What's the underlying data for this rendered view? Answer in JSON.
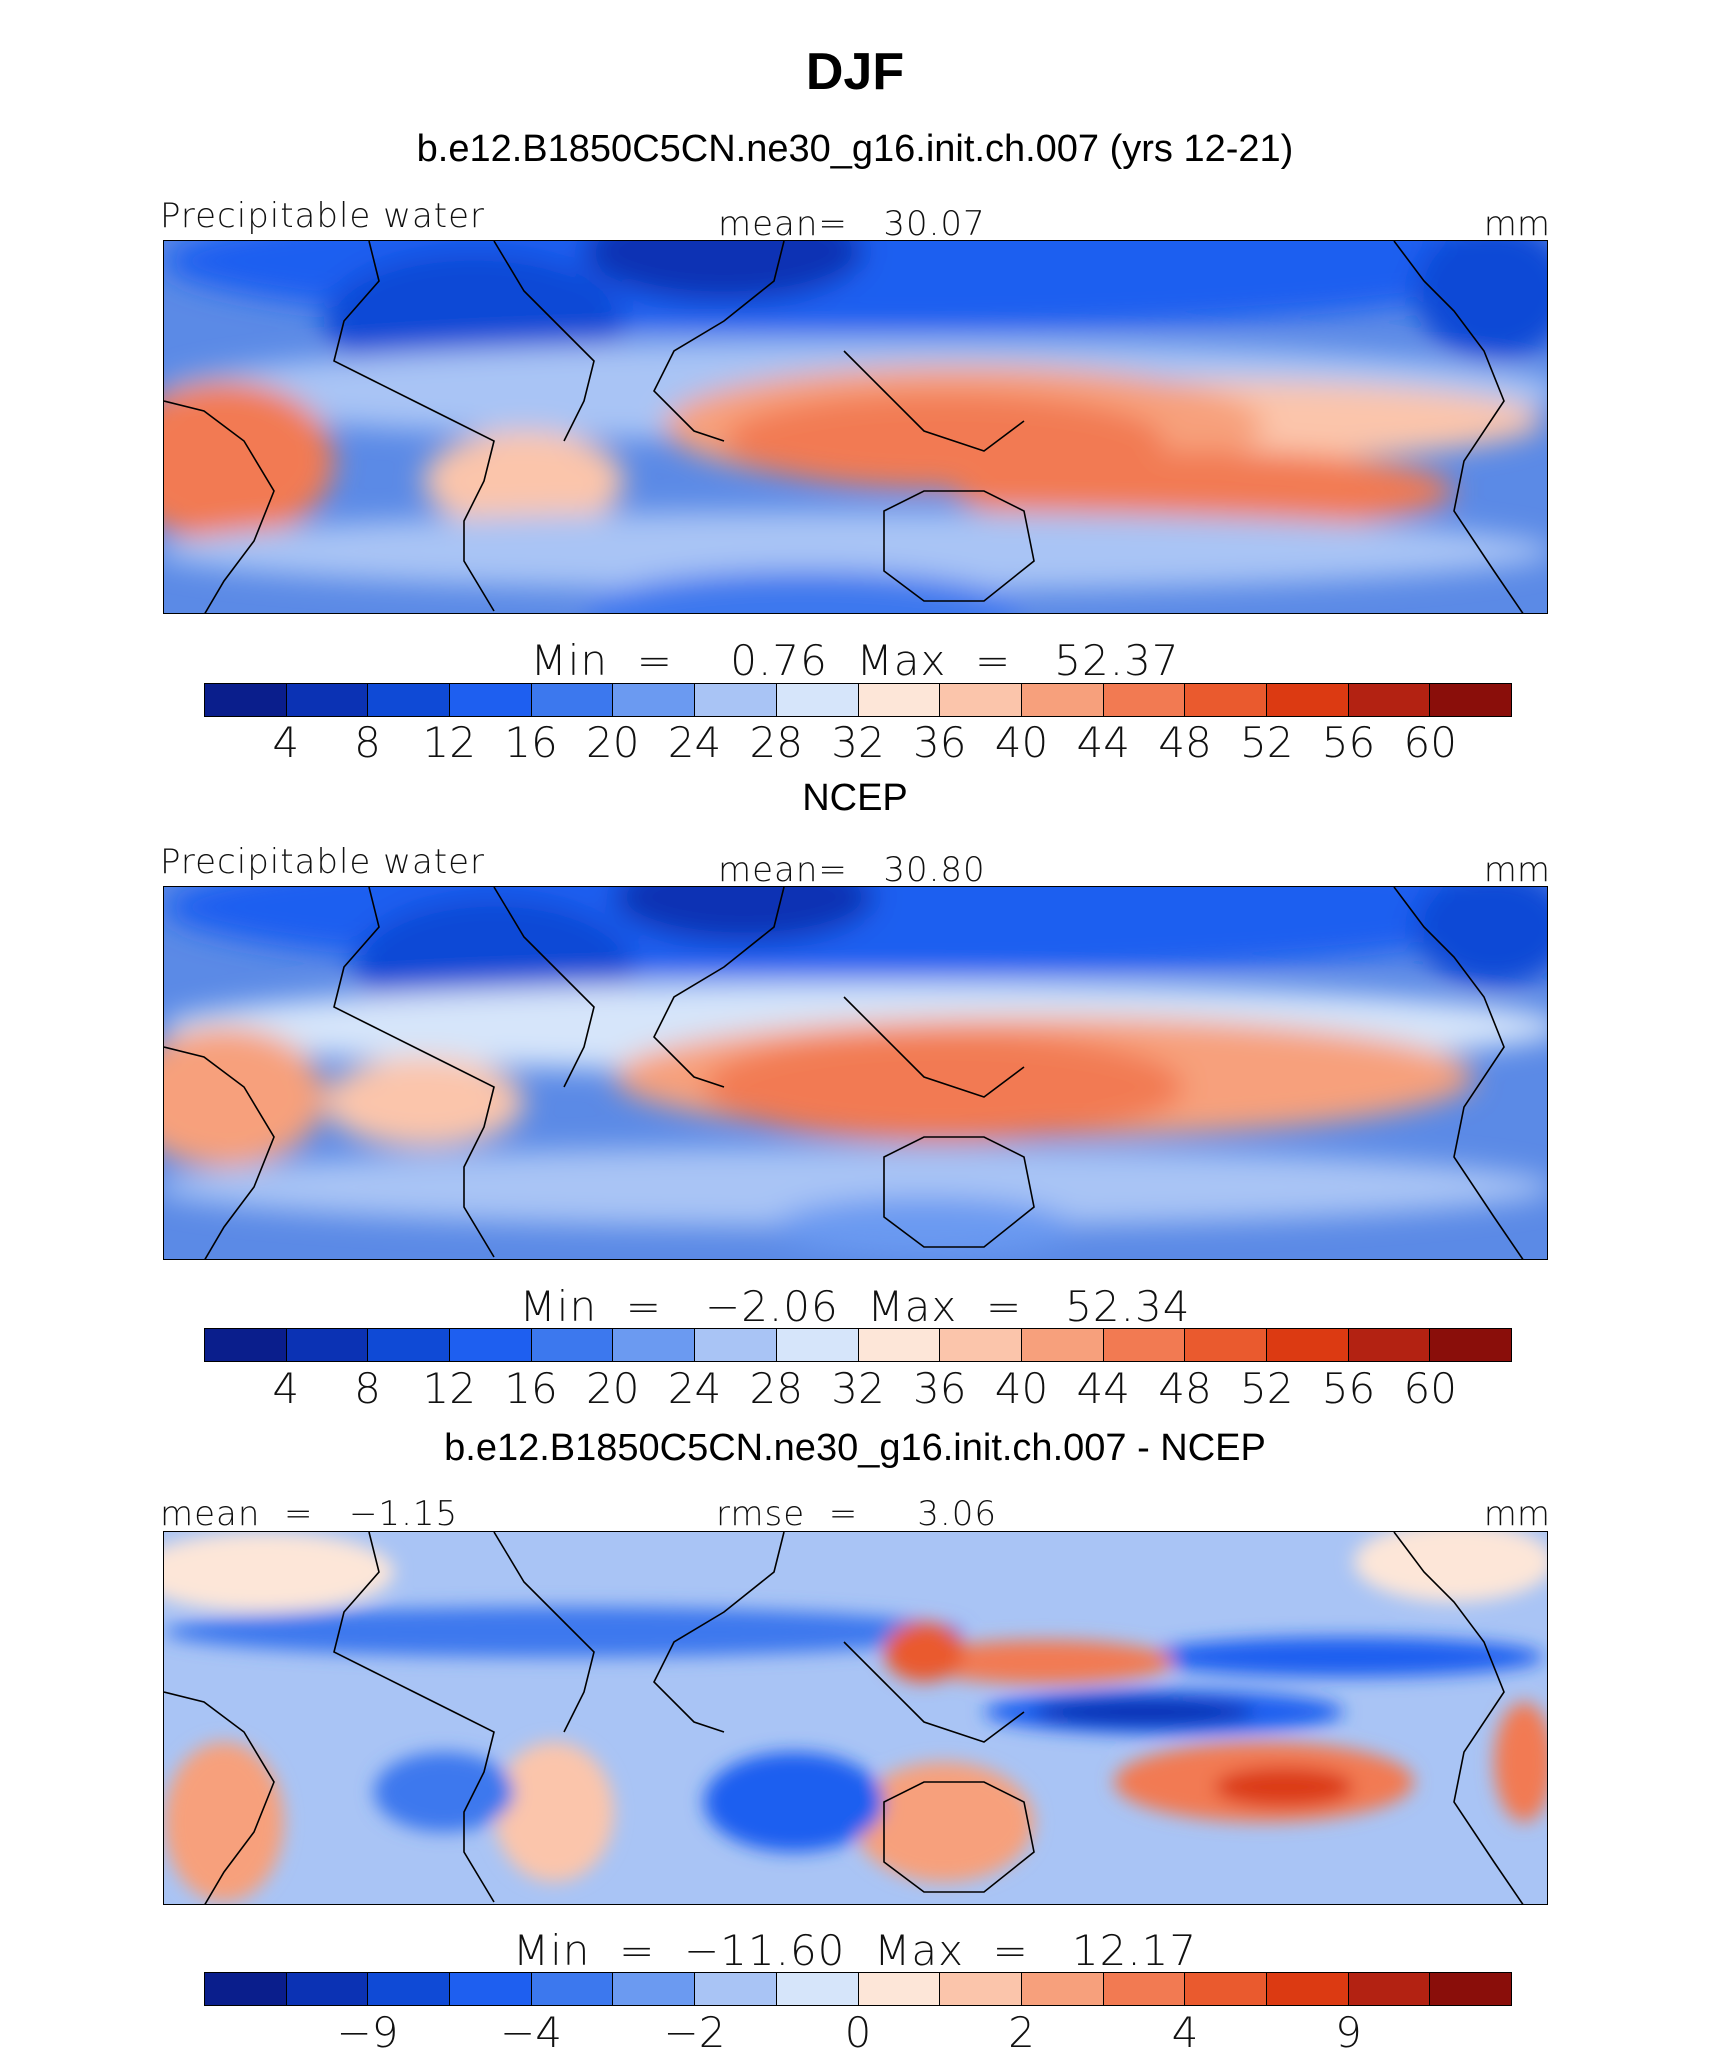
{
  "figure": {
    "season": "DJF"
  },
  "panels": [
    {
      "title": "b.e12.B1850C5CN.ne30_g16.init.ch.007 (yrs 12-21)",
      "left_label": "Precipitable water",
      "center_label": "mean=   30.07",
      "right_label": "mm",
      "minmax": "Min  =    0.76  Max  =   52.37",
      "colorbar_ticks": [
        "4",
        "8",
        "12",
        "16",
        "20",
        "24",
        "28",
        "32",
        "36",
        "40",
        "44",
        "48",
        "52",
        "56",
        "60"
      ]
    },
    {
      "title": "NCEP",
      "left_label": "Precipitable water",
      "center_label": "mean=   30.80",
      "right_label": "mm",
      "minmax": "Min  =   −2.06  Max  =   52.34",
      "colorbar_ticks": [
        "4",
        "8",
        "12",
        "16",
        "20",
        "24",
        "28",
        "32",
        "36",
        "40",
        "44",
        "48",
        "52",
        "56",
        "60"
      ]
    },
    {
      "title": "b.e12.B1850C5CN.ne30_g16.init.ch.007 - NCEP",
      "left_label": "mean  =   −1.15",
      "center_label": "rmse  =     3.06",
      "right_label": "mm",
      "minmax": "Min  =  −11.60  Max  =   12.17",
      "colorbar_ticks": [
        "−9",
        "−4",
        "−2",
        "0",
        "2",
        "4",
        "9"
      ]
    }
  ],
  "chart_data": [
    {
      "type": "heatmap",
      "title": "b.e12.B1850C5CN.ne30_g16.init.ch.007 (yrs 12-21)",
      "variable": "Precipitable water",
      "units": "mm",
      "mean": 30.07,
      "min": 0.76,
      "max": 52.37,
      "contour_levels": [
        4,
        8,
        12,
        16,
        20,
        24,
        28,
        32,
        36,
        40,
        44,
        48,
        52,
        56,
        60
      ],
      "colors": [
        "#0a1e8c",
        "#0b32b4",
        "#0f4ad6",
        "#1e5ff0",
        "#3c78ee",
        "#6b9af1",
        "#a9c4f5",
        "#d6e5fa",
        "#fde6d8",
        "#fbc5ab",
        "#f7a07c",
        "#f27a52",
        "#ea5a2e",
        "#dc3a12",
        "#b32212",
        "#8a0e0a"
      ]
    },
    {
      "type": "heatmap",
      "title": "NCEP",
      "variable": "Precipitable water",
      "units": "mm",
      "mean": 30.8,
      "min": -2.06,
      "max": 52.34,
      "contour_levels": [
        4,
        8,
        12,
        16,
        20,
        24,
        28,
        32,
        36,
        40,
        44,
        48,
        52,
        56,
        60
      ],
      "colors": [
        "#0a1e8c",
        "#0b32b4",
        "#0f4ad6",
        "#1e5ff0",
        "#3c78ee",
        "#6b9af1",
        "#a9c4f5",
        "#d6e5fa",
        "#fde6d8",
        "#fbc5ab",
        "#f7a07c",
        "#f27a52",
        "#ea5a2e",
        "#dc3a12",
        "#b32212",
        "#8a0e0a"
      ]
    },
    {
      "type": "heatmap",
      "title": "b.e12.B1850C5CN.ne30_g16.init.ch.007 - NCEP",
      "units": "mm",
      "mean": -1.15,
      "rmse": 3.06,
      "min": -11.6,
      "max": 12.17,
      "contour_levels": [
        -9,
        -4,
        -2,
        0,
        2,
        4,
        9
      ],
      "colors": [
        "#0a1e8c",
        "#0b32b4",
        "#0f4ad6",
        "#1e5ff0",
        "#3c78ee",
        "#6b9af1",
        "#a9c4f5",
        "#d6e5fa",
        "#fde6d8",
        "#fbc5ab",
        "#f7a07c",
        "#f27a52",
        "#ea5a2e",
        "#dc3a12",
        "#b32212",
        "#8a0e0a"
      ]
    }
  ]
}
